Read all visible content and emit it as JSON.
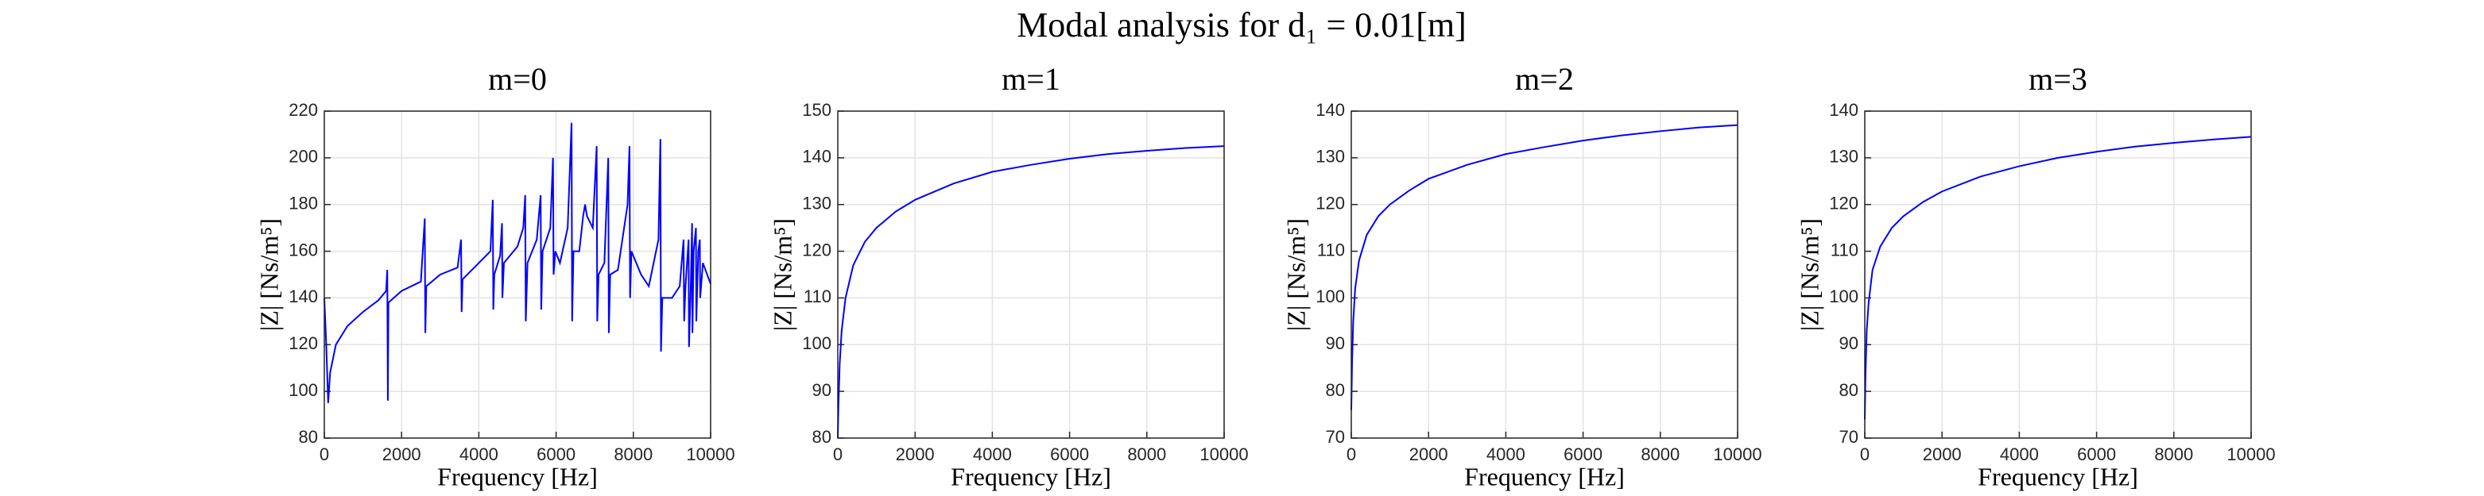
{
  "title": "Modal analysis for d₁ = 0.01[m]",
  "chart_data": [
    {
      "type": "line",
      "title": "m=0",
      "xlabel": "Frequency [Hz]",
      "ylabel": "|Z| [Ns/m⁵]",
      "color": "#0000ff",
      "grid": true,
      "xlim": [
        0,
        10000
      ],
      "ylim": [
        80,
        220
      ],
      "xticks": [
        0,
        2000,
        4000,
        6000,
        8000,
        10000
      ],
      "yticks": [
        80,
        100,
        120,
        140,
        160,
        180,
        200,
        220
      ],
      "x": [
        0,
        50,
        100,
        150,
        300,
        600,
        1000,
        1400,
        1600,
        1630,
        1645,
        1660,
        2000,
        2500,
        2600,
        2615,
        2640,
        3000,
        3450,
        3540,
        3555,
        3580,
        4000,
        4300,
        4360,
        4375,
        4400,
        4550,
        4600,
        4610,
        4650,
        5000,
        5150,
        5200,
        5215,
        5260,
        5500,
        5600,
        5615,
        5650,
        5850,
        5920,
        5935,
        5980,
        6100,
        6300,
        6400,
        6415,
        6450,
        6600,
        6700,
        6750,
        6800,
        6950,
        7050,
        7065,
        7100,
        7250,
        7350,
        7365,
        7400,
        7600,
        7850,
        7900,
        7915,
        7950,
        8200,
        8400,
        8650,
        8700,
        8715,
        8750,
        9000,
        9200,
        9300,
        9315,
        9350,
        9430,
        9440,
        9480,
        9520,
        9530,
        9560,
        9620,
        9630,
        9680,
        9720,
        9730,
        9800,
        10000
      ],
      "values": [
        140,
        120,
        95,
        108,
        120,
        128,
        134,
        139,
        143,
        152,
        96,
        138,
        143,
        147,
        174,
        125,
        145,
        150,
        153,
        165,
        134,
        148,
        155,
        160,
        182,
        135,
        150,
        158,
        172,
        140,
        155,
        162,
        170,
        184,
        130,
        155,
        165,
        184,
        135,
        160,
        170,
        200,
        150,
        160,
        155,
        170,
        215,
        130,
        160,
        160,
        175,
        180,
        175,
        170,
        205,
        130,
        150,
        155,
        200,
        125,
        150,
        152,
        180,
        205,
        140,
        160,
        150,
        145,
        165,
        208,
        117,
        140,
        140,
        145,
        165,
        130,
        145,
        165,
        119,
        140,
        172,
        125,
        160,
        170,
        130,
        160,
        165,
        140,
        155,
        146
      ]
    },
    {
      "type": "line",
      "title": "m=1",
      "xlabel": "Frequency [Hz]",
      "ylabel": "|Z| [Ns/m⁵]",
      "color": "#0000ff",
      "grid": true,
      "xlim": [
        0,
        10000
      ],
      "ylim": [
        80,
        150
      ],
      "xticks": [
        0,
        2000,
        4000,
        6000,
        8000,
        10000
      ],
      "yticks": [
        80,
        90,
        100,
        110,
        120,
        130,
        140,
        150
      ],
      "x": [
        0,
        20,
        50,
        100,
        200,
        400,
        700,
        1000,
        1500,
        2000,
        3000,
        4000,
        5000,
        6000,
        7000,
        8000,
        9000,
        10000
      ],
      "values": [
        80,
        88,
        96,
        103,
        110,
        117,
        122,
        125,
        128.5,
        131,
        134.5,
        137,
        138.5,
        139.8,
        140.8,
        141.5,
        142.1,
        142.5
      ]
    },
    {
      "type": "line",
      "title": "m=2",
      "xlabel": "Frequency [Hz]",
      "ylabel": "|Z| [Ns/m⁵]",
      "color": "#0000ff",
      "grid": true,
      "xlim": [
        0,
        10000
      ],
      "ylim": [
        70,
        140
      ],
      "xticks": [
        0,
        2000,
        4000,
        6000,
        8000,
        10000
      ],
      "yticks": [
        70,
        80,
        90,
        100,
        110,
        120,
        130,
        140
      ],
      "x": [
        0,
        20,
        50,
        100,
        200,
        400,
        700,
        1000,
        1500,
        2000,
        3000,
        4000,
        5000,
        6000,
        7000,
        8000,
        9000,
        10000
      ],
      "values": [
        76,
        86,
        95,
        102,
        108,
        113.5,
        117.5,
        120,
        123,
        125.5,
        128.5,
        130.8,
        132.3,
        133.7,
        134.8,
        135.7,
        136.5,
        137
      ]
    },
    {
      "type": "line",
      "title": "m=3",
      "xlabel": "Frequency [Hz]",
      "ylabel": "|Z| [Ns/m⁵]",
      "color": "#0000ff",
      "grid": true,
      "xlim": [
        0,
        10000
      ],
      "ylim": [
        70,
        140
      ],
      "xticks": [
        0,
        2000,
        4000,
        6000,
        8000,
        10000
      ],
      "yticks": [
        70,
        80,
        90,
        100,
        110,
        120,
        130,
        140
      ],
      "x": [
        0,
        20,
        50,
        100,
        200,
        400,
        700,
        1000,
        1500,
        2000,
        3000,
        4000,
        5000,
        6000,
        7000,
        8000,
        9000,
        10000
      ],
      "values": [
        74,
        84,
        93,
        99,
        106,
        111,
        115,
        117.5,
        120.5,
        122.8,
        126,
        128.2,
        130,
        131.3,
        132.4,
        133.2,
        133.9,
        134.5
      ]
    }
  ]
}
